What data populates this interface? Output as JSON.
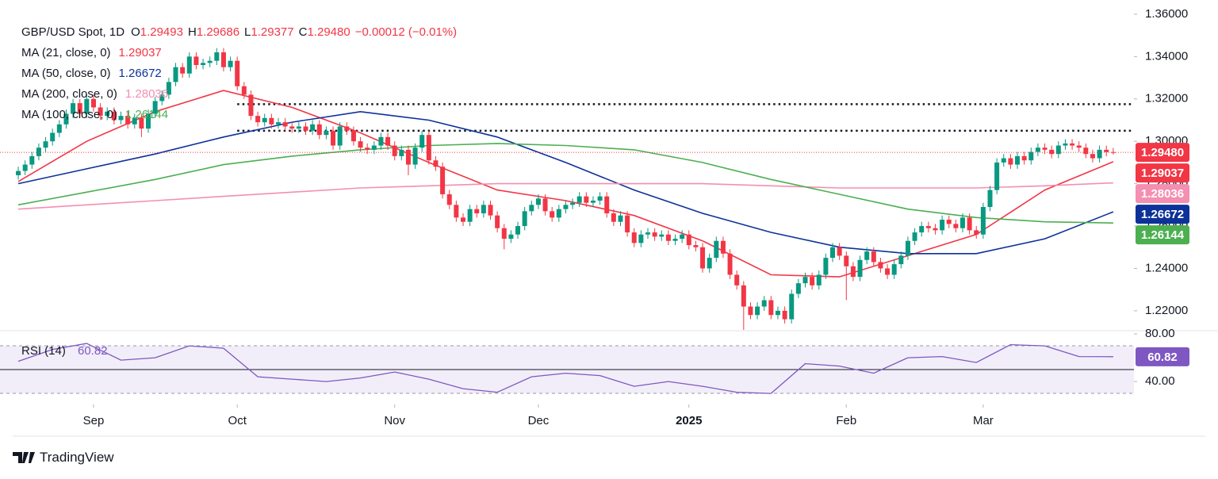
{
  "chart_data": {
    "type": "candlestick",
    "title": "GBP/USD Spot, 1D",
    "header_stats": [
      {
        "label": "O",
        "value": "1.29493"
      },
      {
        "label": "H",
        "value": "1.29686"
      },
      {
        "label": "L",
        "value": "1.29377"
      },
      {
        "label": "C",
        "value": "1.29480"
      }
    ],
    "change": "−0.00012 (−0.01%)",
    "up_color": "#089981",
    "down_color": "#f23645",
    "open": [
      1.284,
      1.286,
      1.289,
      1.293,
      1.297,
      1.3,
      1.304,
      1.308,
      1.313,
      1.318,
      1.313,
      1.32,
      1.316,
      1.312,
      1.314,
      1.31,
      1.312,
      1.308,
      1.311,
      1.306,
      1.313,
      1.319,
      1.322,
      1.328,
      1.335,
      1.332,
      1.34,
      1.336,
      1.337,
      1.338,
      1.342,
      1.335,
      1.338,
      1.326,
      1.322,
      1.312,
      1.309,
      1.311,
      1.308,
      1.309,
      1.307,
      1.306,
      1.307,
      1.305,
      1.308,
      1.303,
      1.305,
      1.298,
      1.307,
      1.305,
      1.3,
      1.297,
      1.296,
      1.298,
      1.302,
      1.298,
      1.293,
      1.296,
      1.289,
      1.297,
      1.303,
      1.291,
      1.288,
      1.275,
      1.27,
      1.264,
      1.262,
      1.268,
      1.266,
      1.27,
      1.265,
      1.259,
      1.254,
      1.256,
      1.26,
      1.267,
      1.27,
      1.273,
      1.267,
      1.264,
      1.268,
      1.27,
      1.271,
      1.274,
      1.271,
      1.272,
      1.274,
      1.266,
      1.262,
      1.265,
      1.257,
      1.252,
      1.256,
      1.257,
      1.255,
      1.256,
      1.253,
      1.254,
      1.256,
      1.251,
      1.25,
      1.24,
      1.245,
      1.253,
      1.247,
      1.237,
      1.232,
      1.222,
      1.218,
      1.222,
      1.225,
      1.218,
      1.22,
      1.216,
      1.228,
      1.233,
      1.236,
      1.232,
      1.237,
      1.245,
      1.25,
      1.246,
      1.241,
      1.236,
      1.244,
      1.248,
      1.243,
      1.24,
      1.237,
      1.242,
      1.246,
      1.253,
      1.257,
      1.26,
      1.259,
      1.258,
      1.263,
      1.261,
      1.259,
      1.264,
      1.258,
      1.256,
      1.269,
      1.277,
      1.29,
      1.292,
      1.289,
      1.293,
      1.291,
      1.295,
      1.297,
      1.296,
      1.294,
      1.298,
      1.299,
      1.298,
      1.297,
      1.294,
      1.292,
      1.296,
      1.29493
    ],
    "high": [
      1.288,
      1.291,
      1.295,
      1.299,
      1.302,
      1.306,
      1.31,
      1.315,
      1.32,
      1.32,
      1.322,
      1.322,
      1.318,
      1.316,
      1.316,
      1.314,
      1.314,
      1.313,
      1.313,
      1.315,
      1.321,
      1.324,
      1.33,
      1.337,
      1.337,
      1.342,
      1.342,
      1.339,
      1.34,
      1.344,
      1.344,
      1.34,
      1.34,
      1.328,
      1.324,
      1.314,
      1.313,
      1.313,
      1.311,
      1.311,
      1.309,
      1.309,
      1.309,
      1.31,
      1.31,
      1.307,
      1.307,
      1.309,
      1.309,
      1.307,
      1.302,
      1.299,
      1.3,
      1.304,
      1.304,
      1.3,
      1.298,
      1.298,
      1.299,
      1.305,
      1.305,
      1.293,
      1.29,
      1.277,
      1.272,
      1.266,
      1.27,
      1.27,
      1.272,
      1.272,
      1.267,
      1.261,
      1.258,
      1.262,
      1.269,
      1.272,
      1.275,
      1.275,
      1.269,
      1.27,
      1.272,
      1.273,
      1.276,
      1.276,
      1.274,
      1.276,
      1.276,
      1.268,
      1.267,
      1.267,
      1.259,
      1.258,
      1.259,
      1.259,
      1.258,
      1.258,
      1.256,
      1.258,
      1.258,
      1.253,
      1.252,
      1.247,
      1.255,
      1.255,
      1.249,
      1.239,
      1.234,
      1.224,
      1.224,
      1.227,
      1.227,
      1.222,
      1.222,
      1.23,
      1.235,
      1.238,
      1.238,
      1.239,
      1.247,
      1.252,
      1.252,
      1.248,
      1.243,
      1.246,
      1.25,
      1.25,
      1.245,
      1.242,
      1.244,
      1.248,
      1.255,
      1.259,
      1.262,
      1.262,
      1.261,
      1.265,
      1.265,
      1.263,
      1.266,
      1.266,
      1.26,
      1.271,
      1.279,
      1.292,
      1.294,
      1.294,
      1.295,
      1.295,
      1.297,
      1.299,
      1.299,
      1.298,
      1.3,
      1.301,
      1.301,
      1.3,
      1.299,
      1.296,
      1.298,
      1.298,
      1.29686
    ],
    "low": [
      1.282,
      1.284,
      1.287,
      1.291,
      1.295,
      1.298,
      1.302,
      1.306,
      1.311,
      1.311,
      1.311,
      1.314,
      1.31,
      1.31,
      1.308,
      1.308,
      1.306,
      1.306,
      1.302,
      1.304,
      1.311,
      1.317,
      1.32,
      1.326,
      1.33,
      1.33,
      1.334,
      1.334,
      1.335,
      1.336,
      1.333,
      1.333,
      1.324,
      1.32,
      1.31,
      1.307,
      1.307,
      1.306,
      1.306,
      1.305,
      1.304,
      1.304,
      1.303,
      1.303,
      1.301,
      1.301,
      1.296,
      1.296,
      1.303,
      1.298,
      1.295,
      1.294,
      1.294,
      1.296,
      1.296,
      1.291,
      1.291,
      1.284,
      1.287,
      1.295,
      1.289,
      1.286,
      1.273,
      1.268,
      1.262,
      1.26,
      1.26,
      1.264,
      1.264,
      1.263,
      1.257,
      1.249,
      1.252,
      1.254,
      1.258,
      1.265,
      1.268,
      1.265,
      1.262,
      1.262,
      1.266,
      1.268,
      1.269,
      1.269,
      1.269,
      1.27,
      1.264,
      1.26,
      1.26,
      1.255,
      1.25,
      1.25,
      1.254,
      1.253,
      1.253,
      1.251,
      1.251,
      1.252,
      1.249,
      1.248,
      1.238,
      1.238,
      1.243,
      1.245,
      1.235,
      1.23,
      1.211,
      1.216,
      1.216,
      1.22,
      1.216,
      1.216,
      1.214,
      1.214,
      1.226,
      1.231,
      1.23,
      1.23,
      1.235,
      1.243,
      1.244,
      1.225,
      1.234,
      1.234,
      1.242,
      1.241,
      1.238,
      1.235,
      1.235,
      1.24,
      1.244,
      1.251,
      1.255,
      1.257,
      1.256,
      1.256,
      1.259,
      1.257,
      1.257,
      1.256,
      1.254,
      1.254,
      1.267,
      1.275,
      1.288,
      1.287,
      1.287,
      1.289,
      1.289,
      1.293,
      1.294,
      1.292,
      1.292,
      1.296,
      1.296,
      1.295,
      1.292,
      1.29,
      1.29,
      1.2929,
      1.29377
    ],
    "close": [
      1.286,
      1.289,
      1.293,
      1.297,
      1.3,
      1.304,
      1.308,
      1.313,
      1.318,
      1.313,
      1.32,
      1.316,
      1.312,
      1.314,
      1.31,
      1.312,
      1.308,
      1.311,
      1.306,
      1.313,
      1.319,
      1.322,
      1.328,
      1.335,
      1.332,
      1.34,
      1.336,
      1.337,
      1.338,
      1.342,
      1.335,
      1.338,
      1.326,
      1.322,
      1.312,
      1.309,
      1.311,
      1.308,
      1.309,
      1.307,
      1.306,
      1.307,
      1.305,
      1.308,
      1.303,
      1.305,
      1.298,
      1.307,
      1.305,
      1.3,
      1.297,
      1.296,
      1.298,
      1.302,
      1.298,
      1.293,
      1.296,
      1.289,
      1.297,
      1.303,
      1.291,
      1.288,
      1.275,
      1.27,
      1.264,
      1.262,
      1.268,
      1.266,
      1.27,
      1.265,
      1.259,
      1.254,
      1.256,
      1.26,
      1.267,
      1.27,
      1.273,
      1.267,
      1.264,
      1.268,
      1.27,
      1.271,
      1.274,
      1.271,
      1.272,
      1.274,
      1.266,
      1.262,
      1.265,
      1.257,
      1.252,
      1.256,
      1.257,
      1.255,
      1.256,
      1.253,
      1.254,
      1.256,
      1.251,
      1.25,
      1.24,
      1.245,
      1.253,
      1.247,
      1.237,
      1.232,
      1.222,
      1.218,
      1.222,
      1.225,
      1.218,
      1.22,
      1.216,
      1.228,
      1.233,
      1.236,
      1.232,
      1.237,
      1.245,
      1.25,
      1.246,
      1.241,
      1.236,
      1.244,
      1.248,
      1.243,
      1.24,
      1.237,
      1.242,
      1.246,
      1.253,
      1.257,
      1.26,
      1.259,
      1.258,
      1.263,
      1.261,
      1.259,
      1.264,
      1.258,
      1.256,
      1.269,
      1.277,
      1.29,
      1.292,
      1.289,
      1.293,
      1.291,
      1.295,
      1.297,
      1.296,
      1.294,
      1.298,
      1.299,
      1.298,
      1.297,
      1.294,
      1.292,
      1.296,
      1.2949,
      1.2948
    ],
    "moving_averages": [
      {
        "name": "MA (21, close, 0)",
        "color": "#f23645",
        "last_label": "1.29037",
        "x": [
          0,
          10,
          20,
          30,
          40,
          50,
          60,
          70,
          80,
          90,
          100,
          110,
          120,
          130,
          140,
          150,
          160
        ],
        "values": [
          1.281,
          1.3,
          1.314,
          1.324,
          1.316,
          1.304,
          1.29,
          1.277,
          1.272,
          1.265,
          1.253,
          1.237,
          1.236,
          1.246,
          1.256,
          1.277,
          1.29037
        ]
      },
      {
        "name": "MA (50, close, 0)",
        "color": "#0c3299",
        "last_label": "1.26672",
        "x": [
          0,
          10,
          20,
          30,
          40,
          50,
          60,
          70,
          80,
          90,
          100,
          110,
          120,
          130,
          140,
          150,
          160
        ],
        "values": [
          1.28,
          1.287,
          1.294,
          1.302,
          1.309,
          1.314,
          1.31,
          1.302,
          1.29,
          1.277,
          1.266,
          1.257,
          1.25,
          1.247,
          1.247,
          1.254,
          1.26672
        ]
      },
      {
        "name": "MA (200, close, 0)",
        "color": "#f48fb1",
        "last_label": "1.28036",
        "x": [
          0,
          10,
          20,
          30,
          40,
          50,
          60,
          70,
          80,
          90,
          100,
          110,
          120,
          130,
          140,
          150,
          160
        ],
        "values": [
          1.268,
          1.27,
          1.272,
          1.274,
          1.276,
          1.278,
          1.279,
          1.28,
          1.28,
          1.28,
          1.28,
          1.279,
          1.278,
          1.278,
          1.278,
          1.279,
          1.28036
        ]
      },
      {
        "name": "MA (100, close, 0)",
        "color": "#4caf50",
        "last_label": "1.26144",
        "x": [
          0,
          10,
          20,
          30,
          40,
          50,
          60,
          70,
          80,
          90,
          100,
          110,
          120,
          130,
          140,
          150,
          160
        ],
        "values": [
          1.27,
          1.276,
          1.282,
          1.289,
          1.293,
          1.296,
          1.298,
          1.299,
          1.298,
          1.296,
          1.29,
          1.282,
          1.275,
          1.268,
          1.264,
          1.262,
          1.26144
        ]
      }
    ],
    "levels": [
      {
        "value": 1.3175,
        "from": 32
      },
      {
        "value": 1.305,
        "from": 32
      }
    ],
    "xlim": [
      -2.67,
      163.03
    ],
    "xticks": [
      {
        "value": 11,
        "label": "Sep"
      },
      {
        "value": 32,
        "label": "Oct"
      },
      {
        "value": 55,
        "label": "Nov"
      },
      {
        "value": 76,
        "label": "Dec"
      },
      {
        "value": 98,
        "label": "2025"
      },
      {
        "value": 121,
        "label": "Feb"
      },
      {
        "value": 141,
        "label": "Mar"
      }
    ],
    "ylim": [
      1.2106,
      1.3667
    ],
    "yticks": [
      {
        "value": 1.22,
        "label": "1.22000"
      },
      {
        "value": 1.24,
        "label": "1.24000"
      },
      {
        "value": 1.26,
        "label": "1.26000"
      },
      {
        "value": 1.28,
        "label": "1.28000"
      },
      {
        "value": 1.3,
        "label": "1.30000"
      },
      {
        "value": 1.32,
        "label": "1.32000"
      },
      {
        "value": 1.34,
        "label": "1.34000"
      },
      {
        "value": 1.36,
        "label": "1.36000"
      }
    ],
    "rsi": {
      "name": "RSI (14)",
      "color": "#7e57c2",
      "value_label": "60.82",
      "x": [
        0,
        5,
        10,
        15,
        20,
        25,
        30,
        35,
        40,
        45,
        50,
        55,
        60,
        65,
        70,
        75,
        80,
        85,
        90,
        95,
        100,
        105,
        110,
        115,
        120,
        125,
        130,
        135,
        140,
        145,
        150,
        155,
        160
      ],
      "values": [
        57,
        67,
        72,
        58,
        60,
        70,
        68,
        44,
        42,
        40,
        43,
        48,
        42,
        34,
        31,
        44,
        47,
        45,
        36,
        40,
        36,
        31,
        30,
        55,
        53,
        47,
        60,
        61,
        56,
        71,
        70,
        61,
        60.82
      ],
      "ylim": [
        20.7,
        82.7
      ],
      "yticks": [
        {
          "value": 80,
          "label": "80.00"
        },
        {
          "value": 40,
          "label": "40.00"
        }
      ],
      "bands": [
        70,
        50,
        30
      ]
    }
  },
  "footer": {
    "brand": "TradingView"
  }
}
